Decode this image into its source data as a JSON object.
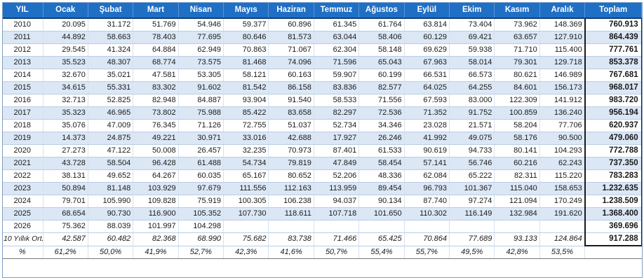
{
  "headers": [
    "YIL",
    "Ocak",
    "Şubat",
    "Mart",
    "Nisan",
    "Mayıs",
    "Haziran",
    "Temmuz",
    "Ağustos",
    "Eylül",
    "Ekim",
    "Kasım",
    "Aralık",
    "Toplam"
  ],
  "rows": [
    [
      "2010",
      "20.095",
      "31.172",
      "51.769",
      "54.946",
      "59.377",
      "60.896",
      "61.345",
      "61.764",
      "63.814",
      "73.404",
      "73.962",
      "148.369",
      "760.913"
    ],
    [
      "2011",
      "44.892",
      "58.663",
      "78.403",
      "77.695",
      "80.646",
      "81.573",
      "63.044",
      "58.406",
      "60.129",
      "69.421",
      "63.657",
      "127.910",
      "864.439"
    ],
    [
      "2012",
      "29.545",
      "41.324",
      "64.884",
      "62.949",
      "70.863",
      "71.067",
      "62.304",
      "58.148",
      "69.629",
      "59.938",
      "71.710",
      "115.400",
      "777.761"
    ],
    [
      "2013",
      "35.523",
      "48.307",
      "68.774",
      "73.575",
      "81.468",
      "74.096",
      "71.596",
      "65.043",
      "67.963",
      "58.014",
      "79.301",
      "129.718",
      "853.378"
    ],
    [
      "2014",
      "32.670",
      "35.021",
      "47.581",
      "53.305",
      "58.121",
      "60.163",
      "59.907",
      "60.199",
      "66.531",
      "66.573",
      "80.621",
      "146.989",
      "767.681"
    ],
    [
      "2015",
      "34.615",
      "55.331",
      "83.302",
      "91.602",
      "81.542",
      "86.158",
      "83.836",
      "82.577",
      "64.025",
      "64.255",
      "84.601",
      "156.173",
      "968.017"
    ],
    [
      "2016",
      "32.713",
      "52.825",
      "82.948",
      "84.887",
      "93.904",
      "91.540",
      "58.533",
      "71.556",
      "67.593",
      "83.000",
      "122.309",
      "141.912",
      "983.720"
    ],
    [
      "2017",
      "35.323",
      "46.965",
      "73.802",
      "75.988",
      "85.422",
      "83.658",
      "82.297",
      "72.536",
      "71.352",
      "91.752",
      "100.859",
      "136.240",
      "956.194"
    ],
    [
      "2018",
      "35.076",
      "47.009",
      "76.345",
      "71.126",
      "72.755",
      "51.037",
      "52.734",
      "34.346",
      "23.028",
      "21.571",
      "58.204",
      "77.706",
      "620.937"
    ],
    [
      "2019",
      "14.373",
      "24.875",
      "49.221",
      "30.971",
      "33.016",
      "42.688",
      "17.927",
      "26.246",
      "41.992",
      "49.075",
      "58.176",
      "90.500",
      "479.060"
    ],
    [
      "2020",
      "27.273",
      "47.122",
      "50.008",
      "26.457",
      "32.235",
      "70.973",
      "87.401",
      "61.533",
      "90.619",
      "94.733",
      "80.141",
      "104.293",
      "772.788"
    ],
    [
      "2021",
      "43.728",
      "58.504",
      "96.428",
      "61.488",
      "54.734",
      "79.819",
      "47.849",
      "58.454",
      "57.141",
      "56.746",
      "60.216",
      "62.243",
      "737.350"
    ],
    [
      "2022",
      "38.131",
      "49.652",
      "64.267",
      "60.035",
      "65.167",
      "80.652",
      "52.206",
      "48.336",
      "62.084",
      "65.222",
      "82.311",
      "115.220",
      "783.283"
    ],
    [
      "2023",
      "50.894",
      "81.148",
      "103.929",
      "97.679",
      "111.556",
      "112.163",
      "113.959",
      "89.454",
      "96.793",
      "101.367",
      "115.040",
      "158.653",
      "1.232.635"
    ],
    [
      "2024",
      "79.701",
      "105.990",
      "109.828",
      "75.919",
      "100.305",
      "106.238",
      "94.037",
      "90.134",
      "87.740",
      "97.274",
      "121.094",
      "170.249",
      "1.238.509"
    ],
    [
      "2025",
      "68.654",
      "90.730",
      "116.900",
      "105.352",
      "107.730",
      "118.611",
      "107.718",
      "101.650",
      "110.302",
      "116.149",
      "132.984",
      "191.620",
      "1.368.400"
    ],
    [
      "2026",
      "75.362",
      "88.039",
      "101.997",
      "104.298",
      "",
      "",
      "",
      "",
      "",
      "",
      "",
      "",
      "369.696"
    ]
  ],
  "avg_row": [
    "10 Yıllık Ort.",
    "42.587",
    "60.482",
    "82.368",
    "68.990",
    "75.682",
    "83.738",
    "71.466",
    "65.425",
    "70.864",
    "77.689",
    "93.133",
    "124.864",
    "917.288"
  ],
  "pct_row": [
    "%",
    "61,2%",
    "50,0%",
    "41,9%",
    "52,7%",
    "42,3%",
    "41,6%",
    "50,7%",
    "55,4%",
    "55,7%",
    "49,5%",
    "42,8%",
    "53,5%",
    ""
  ],
  "colors": {
    "header_bg": "#1f6fc5",
    "header_text": "#ffffff",
    "stripe_even": "#dbe7f5",
    "stripe_odd": "#ffffff"
  }
}
